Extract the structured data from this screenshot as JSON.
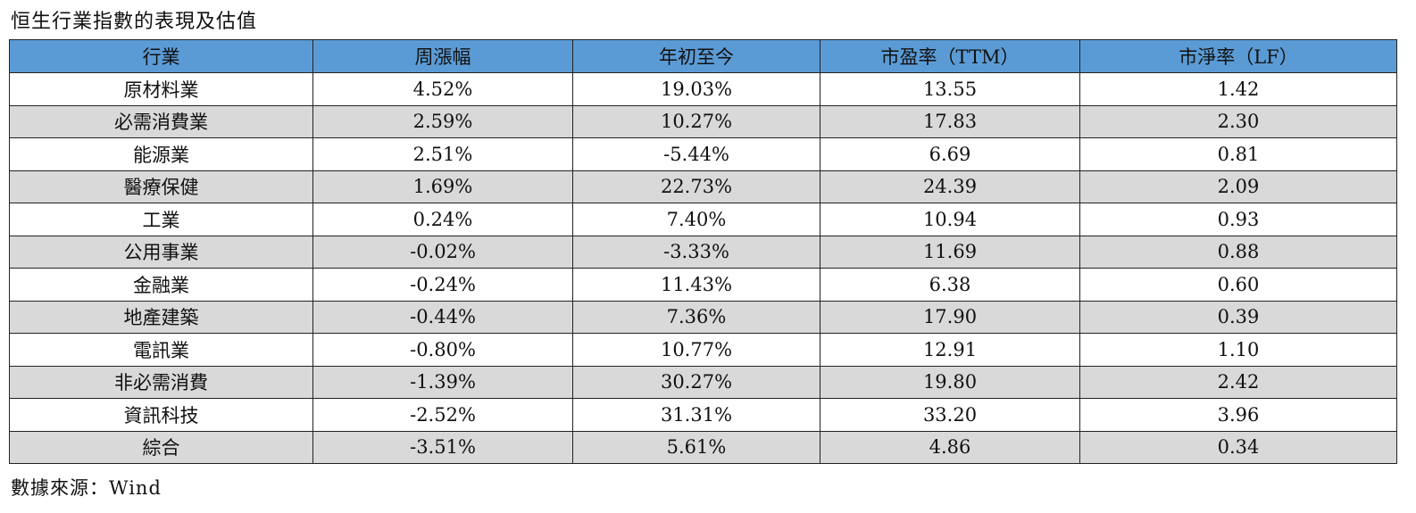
{
  "title": "恒生行業指數的表現及估值",
  "table": {
    "headers": [
      "行業",
      "周漲幅",
      "年初至今",
      "市盈率（TTM）",
      "市淨率（LF）"
    ],
    "rows": [
      [
        "原材料業",
        "4.52%",
        "19.03%",
        "13.55",
        "1.42"
      ],
      [
        "必需消費業",
        "2.59%",
        "10.27%",
        "17.83",
        "2.30"
      ],
      [
        "能源業",
        "2.51%",
        "-5.44%",
        "6.69",
        "0.81"
      ],
      [
        "醫療保健",
        "1.69%",
        "22.73%",
        "24.39",
        "2.09"
      ],
      [
        "工業",
        "0.24%",
        "7.40%",
        "10.94",
        "0.93"
      ],
      [
        "公用事業",
        "-0.02%",
        "-3.33%",
        "11.69",
        "0.88"
      ],
      [
        "金融業",
        "-0.24%",
        "11.43%",
        "6.38",
        "0.60"
      ],
      [
        "地產建築",
        "-0.44%",
        "7.36%",
        "17.90",
        "0.39"
      ],
      [
        "電訊業",
        "-0.80%",
        "10.77%",
        "12.91",
        "1.10"
      ],
      [
        "非必需消費",
        "-1.39%",
        "30.27%",
        "19.80",
        "2.42"
      ],
      [
        "資訊科技",
        "-2.52%",
        "31.31%",
        "33.20",
        "3.96"
      ],
      [
        "綜合",
        "-3.51%",
        "5.61%",
        "4.86",
        "0.34"
      ]
    ]
  },
  "source": "數據來源：Wind",
  "colors": {
    "header_bg": "#5b9bd5",
    "stripe_bg": "#d9d9d9"
  }
}
